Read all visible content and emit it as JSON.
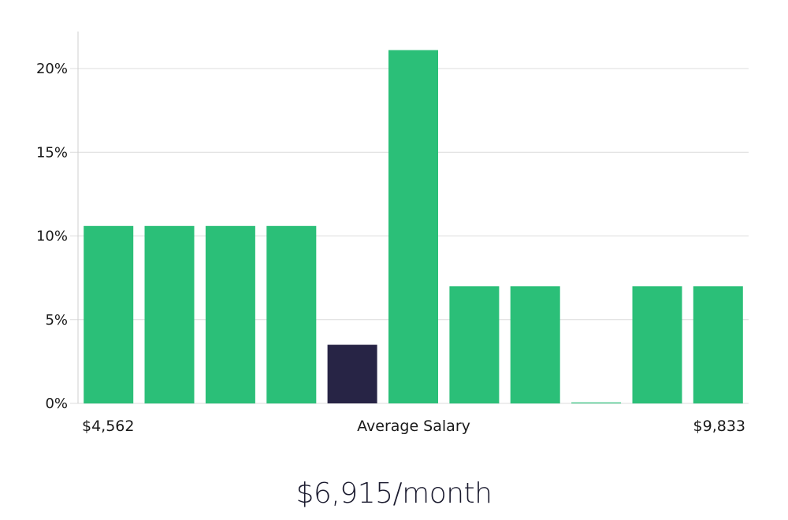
{
  "chart_data": {
    "type": "bar",
    "title": "",
    "xlabel": "Average Salary",
    "ylabel": "",
    "x_min_label": "$4,562",
    "x_max_label": "$9,833",
    "ylim": [
      0,
      22
    ],
    "yticks": [
      {
        "value": 0,
        "label": "0%"
      },
      {
        "value": 5,
        "label": "5%"
      },
      {
        "value": 10,
        "label": "10%"
      },
      {
        "value": 15,
        "label": "15%"
      },
      {
        "value": 20,
        "label": "20%"
      }
    ],
    "values": [
      10.6,
      10.6,
      10.6,
      10.6,
      3.5,
      21.1,
      7.0,
      7.0,
      0.0,
      7.0,
      7.0
    ],
    "highlight_index": 4,
    "grid": true,
    "colors": {
      "bar": "#2bbf78",
      "highlight": "#272445",
      "grid": "#dcdcdc",
      "axis": "#cfcfcf"
    }
  },
  "summary": {
    "salary_text": "$6,915/month"
  }
}
